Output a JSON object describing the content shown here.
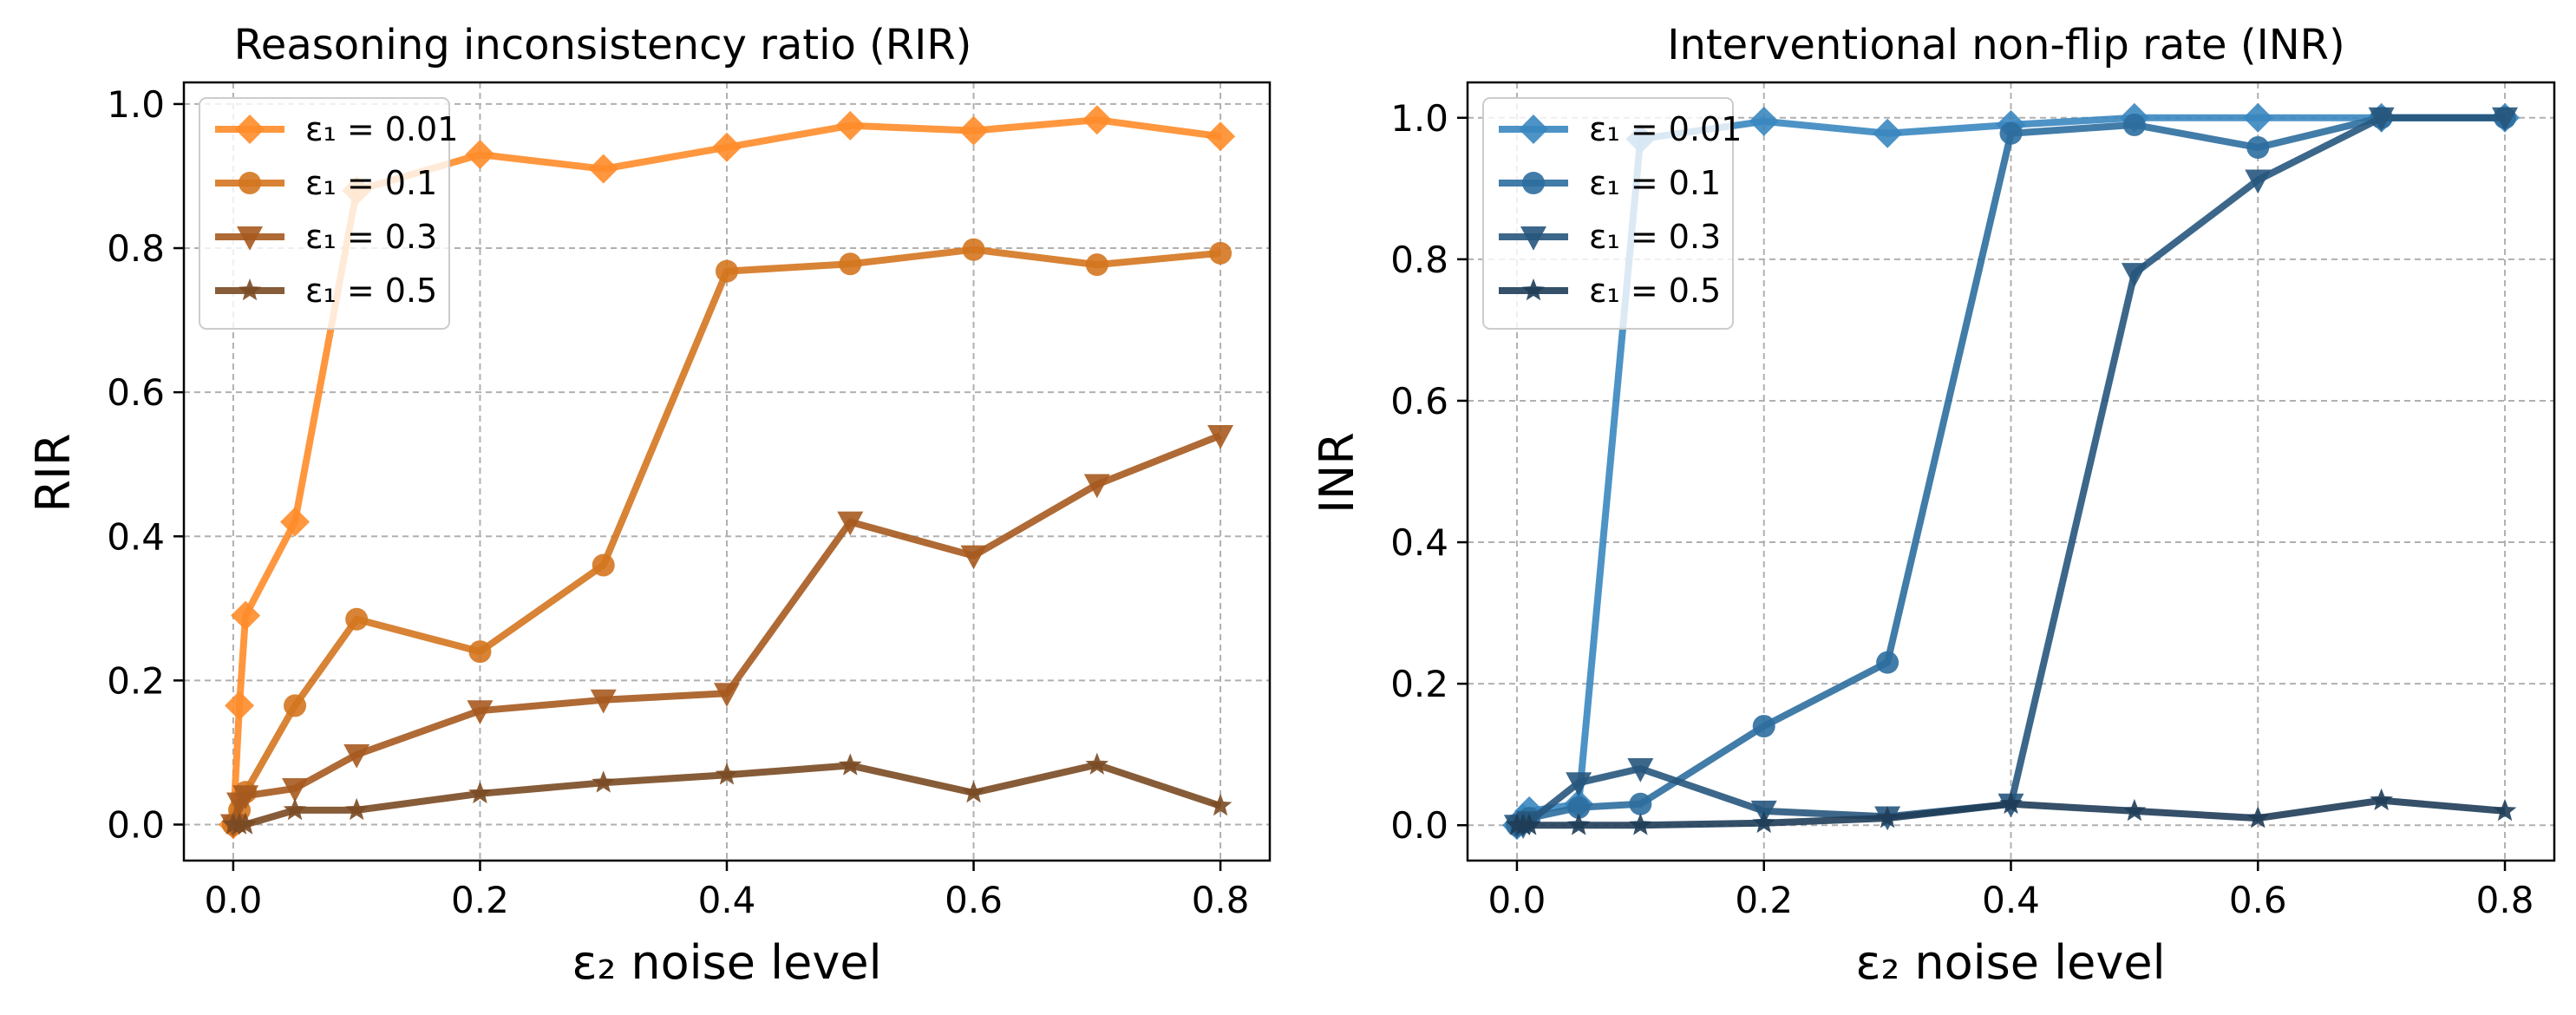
{
  "chart_data": [
    {
      "type": "line",
      "title": "Reasoning inconsistency ratio (RIR)",
      "xlabel": "ε₂ noise level",
      "ylabel": "RIR",
      "xlim": [
        -0.04,
        0.84
      ],
      "ylim": [
        -0.05,
        1.03
      ],
      "xticks": [
        0.0,
        0.2,
        0.4,
        0.6,
        0.8
      ],
      "xtick_labels": [
        "0.0",
        "0.2",
        "0.4",
        "0.6",
        "0.8"
      ],
      "yticks": [
        0.0,
        0.2,
        0.4,
        0.6,
        0.8,
        1.0
      ],
      "ytick_labels": [
        "0.0",
        "0.2",
        "0.4",
        "0.6",
        "0.8",
        "1.0"
      ],
      "grid": true,
      "legend_position": "top-left",
      "x": [
        0.0,
        0.005,
        0.01,
        0.05,
        0.1,
        0.2,
        0.3,
        0.4,
        0.5,
        0.6,
        0.7,
        0.8
      ],
      "series": [
        {
          "name": "ε₁ = 0.01",
          "marker": "diamond",
          "color": "#ff8c2a",
          "values": [
            0.0,
            0.165,
            0.29,
            0.42,
            0.88,
            0.93,
            0.91,
            0.94,
            0.97,
            0.963,
            0.978,
            0.955
          ]
        },
        {
          "name": "ε₁ = 0.1",
          "marker": "circle",
          "color": "#d4761f",
          "values": [
            0.0,
            0.02,
            0.045,
            0.165,
            0.285,
            0.24,
            0.36,
            0.768,
            0.778,
            0.798,
            0.777,
            0.793
          ]
        },
        {
          "name": "ε₁ = 0.3",
          "marker": "triangle-down",
          "color": "#a65a1f",
          "values": [
            0.0,
            0.03,
            0.04,
            0.05,
            0.097,
            0.158,
            0.173,
            0.182,
            0.42,
            0.373,
            0.472,
            0.54
          ]
        },
        {
          "name": "ε₁ = 0.5",
          "marker": "star",
          "color": "#7a4a24",
          "values": [
            0.0,
            0.0,
            0.0,
            0.02,
            0.02,
            0.043,
            0.058,
            0.069,
            0.082,
            0.044,
            0.083,
            0.026
          ]
        }
      ]
    },
    {
      "type": "line",
      "title": "Interventional non-flip rate (INR)",
      "xlabel": "ε₂ noise level",
      "ylabel": "INR",
      "xlim": [
        -0.04,
        0.84
      ],
      "ylim": [
        -0.05,
        1.05
      ],
      "xticks": [
        0.0,
        0.2,
        0.4,
        0.6,
        0.8
      ],
      "xtick_labels": [
        "0.0",
        "0.2",
        "0.4",
        "0.6",
        "0.8"
      ],
      "yticks": [
        0.0,
        0.2,
        0.4,
        0.6,
        0.8,
        1.0
      ],
      "ytick_labels": [
        "0.0",
        "0.2",
        "0.4",
        "0.6",
        "0.8",
        "1.0"
      ],
      "grid": true,
      "legend_position": "top-left",
      "x": [
        0.0,
        0.005,
        0.01,
        0.05,
        0.1,
        0.2,
        0.3,
        0.4,
        0.5,
        0.6,
        0.7,
        0.8
      ],
      "series": [
        {
          "name": "ε₁ = 0.01",
          "marker": "diamond",
          "color": "#3a87c0",
          "values": [
            0.0,
            0.01,
            0.02,
            0.03,
            0.97,
            0.995,
            0.978,
            0.99,
            1.0,
            1.0,
            1.0,
            1.0
          ]
        },
        {
          "name": "ε₁ = 0.1",
          "marker": "circle",
          "color": "#2d6e9e",
          "values": [
            0.0,
            0.005,
            0.01,
            0.025,
            0.03,
            0.14,
            0.23,
            0.978,
            0.99,
            0.958,
            1.0,
            1.0
          ]
        },
        {
          "name": "ε₁ = 0.3",
          "marker": "triangle-down",
          "color": "#27577d",
          "values": [
            0.0,
            0.0,
            0.005,
            0.06,
            0.08,
            0.02,
            0.012,
            0.03,
            0.78,
            0.912,
            1.0,
            1.0
          ]
        },
        {
          "name": "ε₁ = 0.5",
          "marker": "star",
          "color": "#1f3d58",
          "values": [
            0.0,
            0.0,
            0.0,
            0.0,
            0.0,
            0.003,
            0.01,
            0.03,
            0.02,
            0.01,
            0.035,
            0.02
          ]
        }
      ]
    }
  ]
}
